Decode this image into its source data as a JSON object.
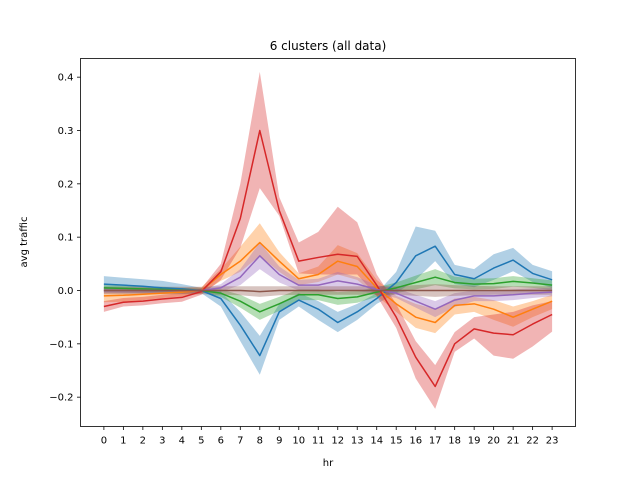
{
  "chart_data": {
    "type": "line",
    "title": "6 clusters (all data)",
    "xlabel": "hr",
    "ylabel": "avg traffic",
    "x": [
      0,
      1,
      2,
      3,
      4,
      5,
      6,
      7,
      8,
      9,
      10,
      11,
      12,
      13,
      14,
      15,
      16,
      17,
      18,
      19,
      20,
      21,
      22,
      23
    ],
    "xtick_labels": [
      "0",
      "1",
      "2",
      "3",
      "4",
      "5",
      "6",
      "7",
      "8",
      "9",
      "10",
      "11",
      "12",
      "13",
      "14",
      "15",
      "16",
      "17",
      "18",
      "19",
      "20",
      "21",
      "22",
      "23"
    ],
    "ylim": [
      -0.255,
      0.435
    ],
    "yticks": [
      -0.2,
      -0.1,
      0.0,
      0.1,
      0.2,
      0.3,
      0.4
    ],
    "ytick_labels": [
      "−0.2",
      "−0.1",
      "0.0",
      "0.1",
      "0.2",
      "0.3",
      "0.4"
    ],
    "grid": false,
    "legend": "none",
    "band_opacity": 0.35,
    "series": [
      {
        "color": "#1f77b4",
        "values": [
          0.012,
          0.01,
          0.008,
          0.005,
          0.003,
          0.0,
          -0.015,
          -0.065,
          -0.122,
          -0.04,
          -0.018,
          -0.035,
          -0.06,
          -0.04,
          -0.015,
          0.015,
          0.065,
          0.083,
          0.03,
          0.022,
          0.042,
          0.057,
          0.032,
          0.02
        ],
        "upper": [
          0.027,
          0.024,
          0.021,
          0.018,
          0.012,
          0.005,
          -0.002,
          -0.04,
          -0.085,
          -0.025,
          -0.005,
          -0.02,
          -0.04,
          -0.025,
          -0.005,
          0.035,
          0.12,
          0.112,
          0.048,
          0.04,
          0.068,
          0.08,
          0.048,
          0.036
        ],
        "lower": [
          -0.003,
          -0.004,
          -0.005,
          -0.006,
          -0.006,
          -0.005,
          -0.03,
          -0.095,
          -0.158,
          -0.055,
          -0.03,
          -0.055,
          -0.078,
          -0.055,
          -0.025,
          -0.005,
          0.02,
          0.055,
          0.012,
          0.006,
          0.02,
          0.036,
          0.016,
          0.005
        ]
      },
      {
        "color": "#ff7f0e",
        "values": [
          -0.01,
          -0.009,
          -0.007,
          -0.005,
          -0.003,
          0.0,
          0.03,
          0.055,
          0.09,
          0.055,
          0.022,
          0.03,
          0.055,
          0.045,
          0.005,
          -0.025,
          -0.05,
          -0.06,
          -0.028,
          -0.025,
          -0.035,
          -0.05,
          -0.035,
          -0.02
        ],
        "upper": [
          0.002,
          0.003,
          0.004,
          0.004,
          0.005,
          0.006,
          0.04,
          0.082,
          0.126,
          0.072,
          0.032,
          0.045,
          0.085,
          0.07,
          0.02,
          -0.01,
          -0.025,
          -0.035,
          -0.015,
          -0.012,
          -0.018,
          -0.03,
          -0.02,
          -0.008
        ],
        "lower": [
          -0.022,
          -0.021,
          -0.018,
          -0.014,
          -0.011,
          -0.006,
          0.018,
          0.035,
          0.065,
          0.035,
          0.01,
          0.016,
          0.03,
          0.02,
          -0.01,
          -0.04,
          -0.07,
          -0.08,
          -0.045,
          -0.04,
          -0.055,
          -0.068,
          -0.05,
          -0.035
        ]
      },
      {
        "color": "#2ca02c",
        "values": [
          0.005,
          0.004,
          0.003,
          0.002,
          0.001,
          0.0,
          -0.005,
          -0.02,
          -0.04,
          -0.025,
          -0.008,
          -0.008,
          -0.015,
          -0.012,
          -0.003,
          0.005,
          0.015,
          0.025,
          0.015,
          0.012,
          0.013,
          0.017,
          0.014,
          0.01
        ],
        "upper": [
          0.01,
          0.009,
          0.008,
          0.007,
          0.005,
          0.003,
          0.002,
          -0.008,
          -0.025,
          -0.012,
          0.002,
          0.002,
          -0.003,
          -0.001,
          0.006,
          0.015,
          0.028,
          0.04,
          0.026,
          0.022,
          0.023,
          0.027,
          0.023,
          0.019
        ],
        "lower": [
          0.0,
          -0.001,
          -0.002,
          -0.003,
          -0.003,
          -0.003,
          -0.012,
          -0.032,
          -0.055,
          -0.038,
          -0.018,
          -0.018,
          -0.027,
          -0.023,
          -0.012,
          -0.005,
          0.002,
          0.01,
          0.004,
          0.002,
          0.003,
          0.007,
          0.005,
          0.001
        ]
      },
      {
        "color": "#d62728",
        "values": [
          -0.03,
          -0.022,
          -0.02,
          -0.016,
          -0.013,
          -0.002,
          0.035,
          0.135,
          0.3,
          0.15,
          0.055,
          0.062,
          0.068,
          0.064,
          0.01,
          -0.05,
          -0.125,
          -0.18,
          -0.1,
          -0.072,
          -0.08,
          -0.083,
          -0.063,
          -0.045
        ],
        "upper": [
          -0.02,
          -0.014,
          -0.012,
          -0.008,
          -0.005,
          0.004,
          0.05,
          0.2,
          0.41,
          0.175,
          0.09,
          0.11,
          0.157,
          0.128,
          0.03,
          -0.025,
          -0.095,
          -0.14,
          -0.078,
          -0.05,
          -0.045,
          -0.04,
          -0.028,
          -0.02
        ],
        "lower": [
          -0.04,
          -0.03,
          -0.028,
          -0.024,
          -0.021,
          -0.008,
          0.02,
          0.08,
          0.192,
          0.14,
          0.032,
          0.03,
          0.03,
          0.03,
          -0.01,
          -0.07,
          -0.165,
          -0.222,
          -0.115,
          -0.09,
          -0.122,
          -0.128,
          -0.105,
          -0.077
        ]
      },
      {
        "color": "#9467bd",
        "values": [
          0.0,
          0.0,
          0.0,
          0.0,
          0.0,
          0.0,
          0.005,
          0.025,
          0.065,
          0.03,
          0.01,
          0.01,
          0.018,
          0.012,
          0.002,
          -0.005,
          -0.02,
          -0.035,
          -0.018,
          -0.01,
          -0.01,
          -0.008,
          -0.005,
          -0.003
        ],
        "upper": [
          0.005,
          0.005,
          0.005,
          0.005,
          0.004,
          0.003,
          0.012,
          0.04,
          0.09,
          0.045,
          0.02,
          0.022,
          0.035,
          0.025,
          0.01,
          0.004,
          -0.008,
          -0.02,
          -0.005,
          0.0,
          0.0,
          0.002,
          0.004,
          0.005
        ],
        "lower": [
          -0.005,
          -0.005,
          -0.005,
          -0.005,
          -0.004,
          -0.003,
          -0.002,
          0.01,
          0.04,
          0.015,
          0.0,
          -0.002,
          0.001,
          -0.001,
          -0.006,
          -0.014,
          -0.032,
          -0.05,
          -0.031,
          -0.02,
          -0.02,
          -0.018,
          -0.014,
          -0.011
        ]
      },
      {
        "color": "#8c564b",
        "values": [
          0.0,
          0.0,
          0.0,
          0.0,
          0.0,
          0.0,
          0.0,
          0.0,
          -0.002,
          0.0,
          0.0,
          0.0,
          0.0,
          0.0,
          0.0,
          0.0,
          0.0,
          0.0,
          0.0,
          0.0,
          0.0,
          0.0,
          0.0,
          0.0
        ],
        "upper": [
          0.007,
          0.007,
          0.007,
          0.007,
          0.007,
          0.007,
          0.008,
          0.008,
          0.008,
          0.008,
          0.008,
          0.008,
          0.008,
          0.008,
          0.008,
          0.008,
          0.01,
          0.012,
          0.01,
          0.009,
          0.008,
          0.008,
          0.008,
          0.008
        ],
        "lower": [
          -0.007,
          -0.007,
          -0.007,
          -0.007,
          -0.007,
          -0.007,
          -0.008,
          -0.009,
          -0.012,
          -0.009,
          -0.008,
          -0.008,
          -0.008,
          -0.008,
          -0.008,
          -0.008,
          -0.01,
          -0.012,
          -0.01,
          -0.009,
          -0.008,
          -0.008,
          -0.008,
          -0.008
        ]
      }
    ]
  }
}
